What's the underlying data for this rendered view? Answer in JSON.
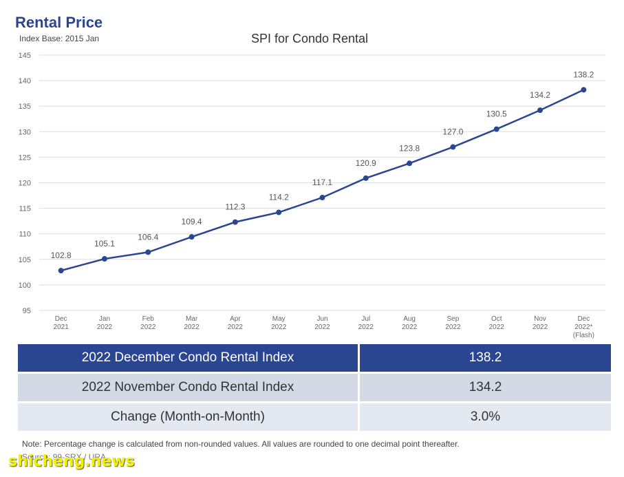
{
  "heading": "Rental Price",
  "subheading": "Index Base: 2015 Jan",
  "chart_data": {
    "type": "line",
    "title": "SPI for Condo Rental",
    "categories": [
      [
        "Dec",
        "2021"
      ],
      [
        "Jan",
        "2022"
      ],
      [
        "Feb",
        "2022"
      ],
      [
        "Mar",
        "2022"
      ],
      [
        "Apr",
        "2022"
      ],
      [
        "May",
        "2022"
      ],
      [
        "Jun",
        "2022"
      ],
      [
        "Jul",
        "2022"
      ],
      [
        "Aug",
        "2022"
      ],
      [
        "Sep",
        "2022"
      ],
      [
        "Oct",
        "2022"
      ],
      [
        "Nov",
        "2022"
      ],
      [
        "Dec",
        "2022*",
        "(Flash)"
      ]
    ],
    "values": [
      102.8,
      105.1,
      106.4,
      109.4,
      112.3,
      114.2,
      117.1,
      120.9,
      123.8,
      127.0,
      130.5,
      134.2,
      138.2
    ],
    "value_labels": [
      "102.8",
      "105.1",
      "106.4",
      "109.4",
      "112.3",
      "114.2",
      "117.1",
      "120.9",
      "123.8",
      "127.0",
      "130.5",
      "134.2",
      "138.2"
    ],
    "ylim": [
      95,
      145
    ],
    "yticks": [
      95,
      100,
      105,
      110,
      115,
      120,
      125,
      130,
      135,
      140,
      145
    ],
    "grid": true,
    "line_color": "#2a4690"
  },
  "table": {
    "rows": [
      {
        "label": "2022 December Condo Rental Index",
        "value": "138.2"
      },
      {
        "label": "2022 November Condo Rental Index",
        "value": "134.2"
      },
      {
        "label": "Change (Month-on-Month)",
        "value": "3.0%"
      }
    ]
  },
  "note": "Note: Percentage change is calculated from non-rounded values.  All values are rounded to one decimal point thereafter.",
  "source": "Source: 99-SRX / URA",
  "watermark": "shicheng.news",
  "colors": {
    "brand": "#2a4690",
    "percent": "#3a7fc4",
    "row_light": "#d4d9e6"
  }
}
